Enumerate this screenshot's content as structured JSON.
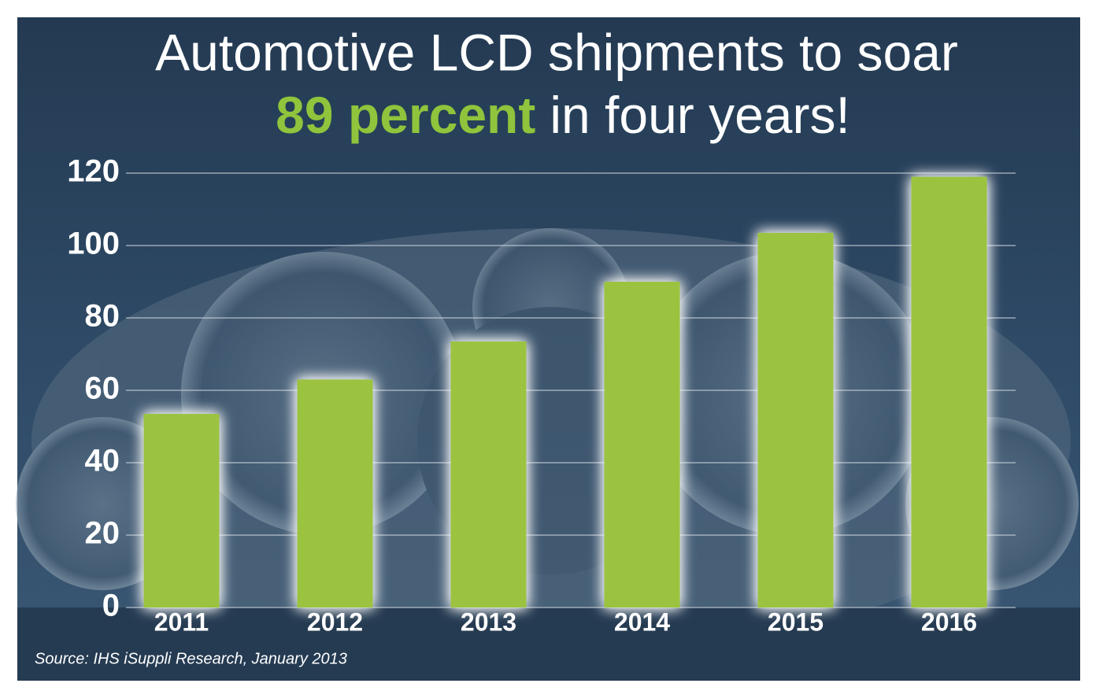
{
  "chart_data": {
    "type": "bar",
    "title": "Automotive LCD shipments to soar",
    "title_highlight": "89 percent",
    "title_end": "in four years!",
    "source": "Source: IHS iSuppli Research, January 2013",
    "categories": [
      "2011",
      "2012",
      "2013",
      "2014",
      "2015",
      "2016"
    ],
    "values": [
      53.5,
      63,
      73.5,
      90,
      103.5,
      119
    ],
    "color": "#9bc33f",
    "ylim": [
      0,
      120
    ],
    "yticks": [
      0,
      20,
      40,
      60,
      80,
      100,
      120
    ],
    "grid": true
  }
}
